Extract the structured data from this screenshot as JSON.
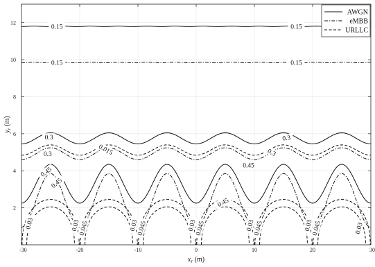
{
  "chart_data": {
    "type": "contour",
    "title": "",
    "xlabel": "x_r (m)",
    "ylabel": "y_r (m)",
    "xlim": [
      -30,
      30
    ],
    "ylim": [
      0,
      13
    ],
    "xticks": [
      -30,
      -20,
      -10,
      0,
      10,
      20,
      30
    ],
    "yticks": [
      2,
      4,
      6,
      8,
      10,
      12
    ],
    "grid": true,
    "legend_position": "top-right",
    "series": [
      {
        "name": "AWGN",
        "style": "solid"
      },
      {
        "name": "eMBB",
        "style": "dash-dot"
      },
      {
        "name": "URLLC",
        "style": "dashed"
      }
    ],
    "contour_labels": {
      "awgn_015": "0.15",
      "awgn_03": "0.3",
      "awgn_045": "0.45",
      "embb_015": "0.15",
      "embb_03": "0.3",
      "embb_045": "0.45",
      "urllc_0015": "0.015",
      "urllc_003": "0.03",
      "urllc_0045": "0.045"
    },
    "contours": [
      {
        "series": "AWGN",
        "level": 0.15,
        "type": "flat",
        "y": 11.8
      },
      {
        "series": "eMBB",
        "level": 0.15,
        "type": "flat",
        "y": 9.85
      },
      {
        "series": "AWGN",
        "level": 0.3,
        "type": "wave",
        "base": 5.75,
        "amp": 0.3
      },
      {
        "series": "eMBB",
        "level": 0.3,
        "type": "wave",
        "base": 4.92,
        "amp": 0.32
      },
      {
        "series": "URLLC",
        "level": 0.015,
        "type": "wave",
        "base": 5.12,
        "amp": 0.28
      },
      {
        "series": "AWGN",
        "level": 0.45,
        "type": "wave",
        "base": 3.3,
        "amp": 1.05
      },
      {
        "series": "eMBB",
        "level": 0.45,
        "type": "wave",
        "base": 2.4,
        "amp": 1.45
      },
      {
        "series": "URLLC",
        "level": 0.03,
        "type": "arch",
        "halfwidth": 4.9,
        "height": 2.45
      },
      {
        "series": "URLLC",
        "level": 0.045,
        "type": "arch",
        "halfwidth": 4.1,
        "height": 2.05
      }
    ],
    "arch_centers": [
      -25,
      -15,
      -5,
      5,
      15,
      25
    ]
  }
}
